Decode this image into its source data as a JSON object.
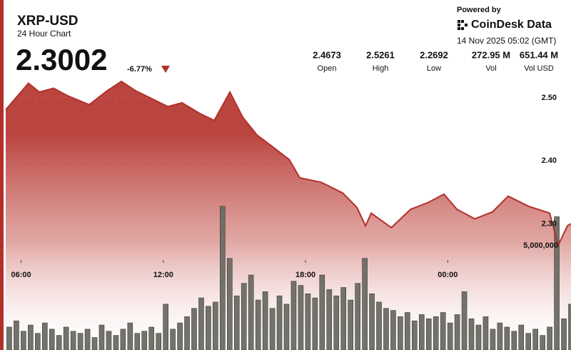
{
  "header": {
    "title": "XRP-USD",
    "subtitle": "24 Hour Chart",
    "price": "2.3002",
    "change": "-6.77%",
    "stats": [
      {
        "value": "2.4673",
        "label": "Open"
      },
      {
        "value": "2.5261",
        "label": "High"
      },
      {
        "value": "2.2692",
        "label": "Low"
      },
      {
        "value": "272.95 M",
        "label": "Vol"
      },
      {
        "value": "651.44 M",
        "label": "Vol USD"
      }
    ]
  },
  "branding": {
    "powered_by": "Powered by",
    "name": "CoinDesk Data",
    "timestamp": "14 Nov 2025 05:02 (GMT)"
  },
  "chart_data": {
    "type": "area",
    "xlim": [
      5.35,
      29.2
    ],
    "xticks": [
      {
        "value": 6,
        "label": "06:00"
      },
      {
        "value": 12,
        "label": "12:00"
      },
      {
        "value": 18,
        "label": "18:00"
      },
      {
        "value": 24,
        "label": "00:00"
      }
    ],
    "ylim": [
      2.1,
      2.655
    ],
    "yticks": [
      {
        "value": 2.3,
        "label": "2.30"
      },
      {
        "value": 2.4,
        "label": "2.40"
      },
      {
        "value": 2.5,
        "label": "2.50"
      }
    ],
    "y2lim": [
      0,
      16800000
    ],
    "y2ticks": [
      {
        "value": 5000000,
        "label": "5,000,000"
      }
    ],
    "grid": true,
    "series": [
      {
        "type": "area",
        "color": "#b3302a",
        "x": [
          5.35,
          6.31,
          6.77,
          7.37,
          7.97,
          8.87,
          9.63,
          10.23,
          10.83,
          11.43,
          12.19,
          12.79,
          13.54,
          14.15,
          14.81,
          15.35,
          15.95,
          16.55,
          17.31,
          17.76,
          18.66,
          19.57,
          20.17,
          20.53,
          20.77,
          21.62,
          22.43,
          23.18,
          23.84,
          24.39,
          25.14,
          25.89,
          26.55,
          27.4,
          28.3,
          28.66,
          29.05,
          29.2
        ],
        "values": [
          2.481,
          2.523,
          2.509,
          2.515,
          2.503,
          2.489,
          2.511,
          2.526,
          2.511,
          2.5,
          2.486,
          2.492,
          2.475,
          2.464,
          2.509,
          2.469,
          2.441,
          2.424,
          2.402,
          2.373,
          2.366,
          2.349,
          2.326,
          2.297,
          2.317,
          2.294,
          2.323,
          2.334,
          2.347,
          2.323,
          2.308,
          2.319,
          2.344,
          2.328,
          2.317,
          2.266,
          2.297,
          2.3002
        ]
      },
      {
        "type": "bar",
        "axis": "y2",
        "color": "#6b6b64",
        "x": [
          5.5,
          5.8,
          6.1,
          6.4,
          6.7,
          7.0,
          7.3,
          7.6,
          7.9,
          8.2,
          8.5,
          8.8,
          9.1,
          9.4,
          9.7,
          10.0,
          10.3,
          10.6,
          10.9,
          11.2,
          11.5,
          11.8,
          12.1,
          12.4,
          12.7,
          13.0,
          13.3,
          13.6,
          13.9,
          14.2,
          14.5,
          14.8,
          15.1,
          15.4,
          15.7,
          16.0,
          16.3,
          16.6,
          16.9,
          17.2,
          17.5,
          17.8,
          18.1,
          18.4,
          18.7,
          19.0,
          19.3,
          19.6,
          19.9,
          20.2,
          20.5,
          20.8,
          21.1,
          21.4,
          21.7,
          22.0,
          22.3,
          22.6,
          22.9,
          23.2,
          23.5,
          23.8,
          24.1,
          24.4,
          24.7,
          25.0,
          25.3,
          25.6,
          25.9,
          26.2,
          26.5,
          26.8,
          27.1,
          27.4,
          27.7,
          28.0,
          28.3,
          28.6,
          28.9,
          29.2
        ],
        "values": [
          1100000,
          1400000,
          900000,
          1200000,
          800000,
          1300000,
          1000000,
          700000,
          1100000,
          900000,
          800000,
          1000000,
          600000,
          1200000,
          900000,
          700000,
          1000000,
          1300000,
          800000,
          900000,
          1100000,
          800000,
          2200000,
          1000000,
          1300000,
          1600000,
          2000000,
          2500000,
          2100000,
          2300000,
          6900000,
          4400000,
          2600000,
          3200000,
          3600000,
          2400000,
          2800000,
          2000000,
          2600000,
          2200000,
          3300000,
          3100000,
          2700000,
          2500000,
          3600000,
          2900000,
          2600000,
          3000000,
          2400000,
          3200000,
          4400000,
          2700000,
          2300000,
          2000000,
          1900000,
          1600000,
          1800000,
          1400000,
          1700000,
          1500000,
          1600000,
          1800000,
          1300000,
          1700000,
          2800000,
          1500000,
          1200000,
          1600000,
          1000000,
          1300000,
          1100000,
          900000,
          1200000,
          800000,
          1000000,
          700000,
          1100000,
          6400000,
          1500000,
          2200000
        ]
      }
    ]
  }
}
